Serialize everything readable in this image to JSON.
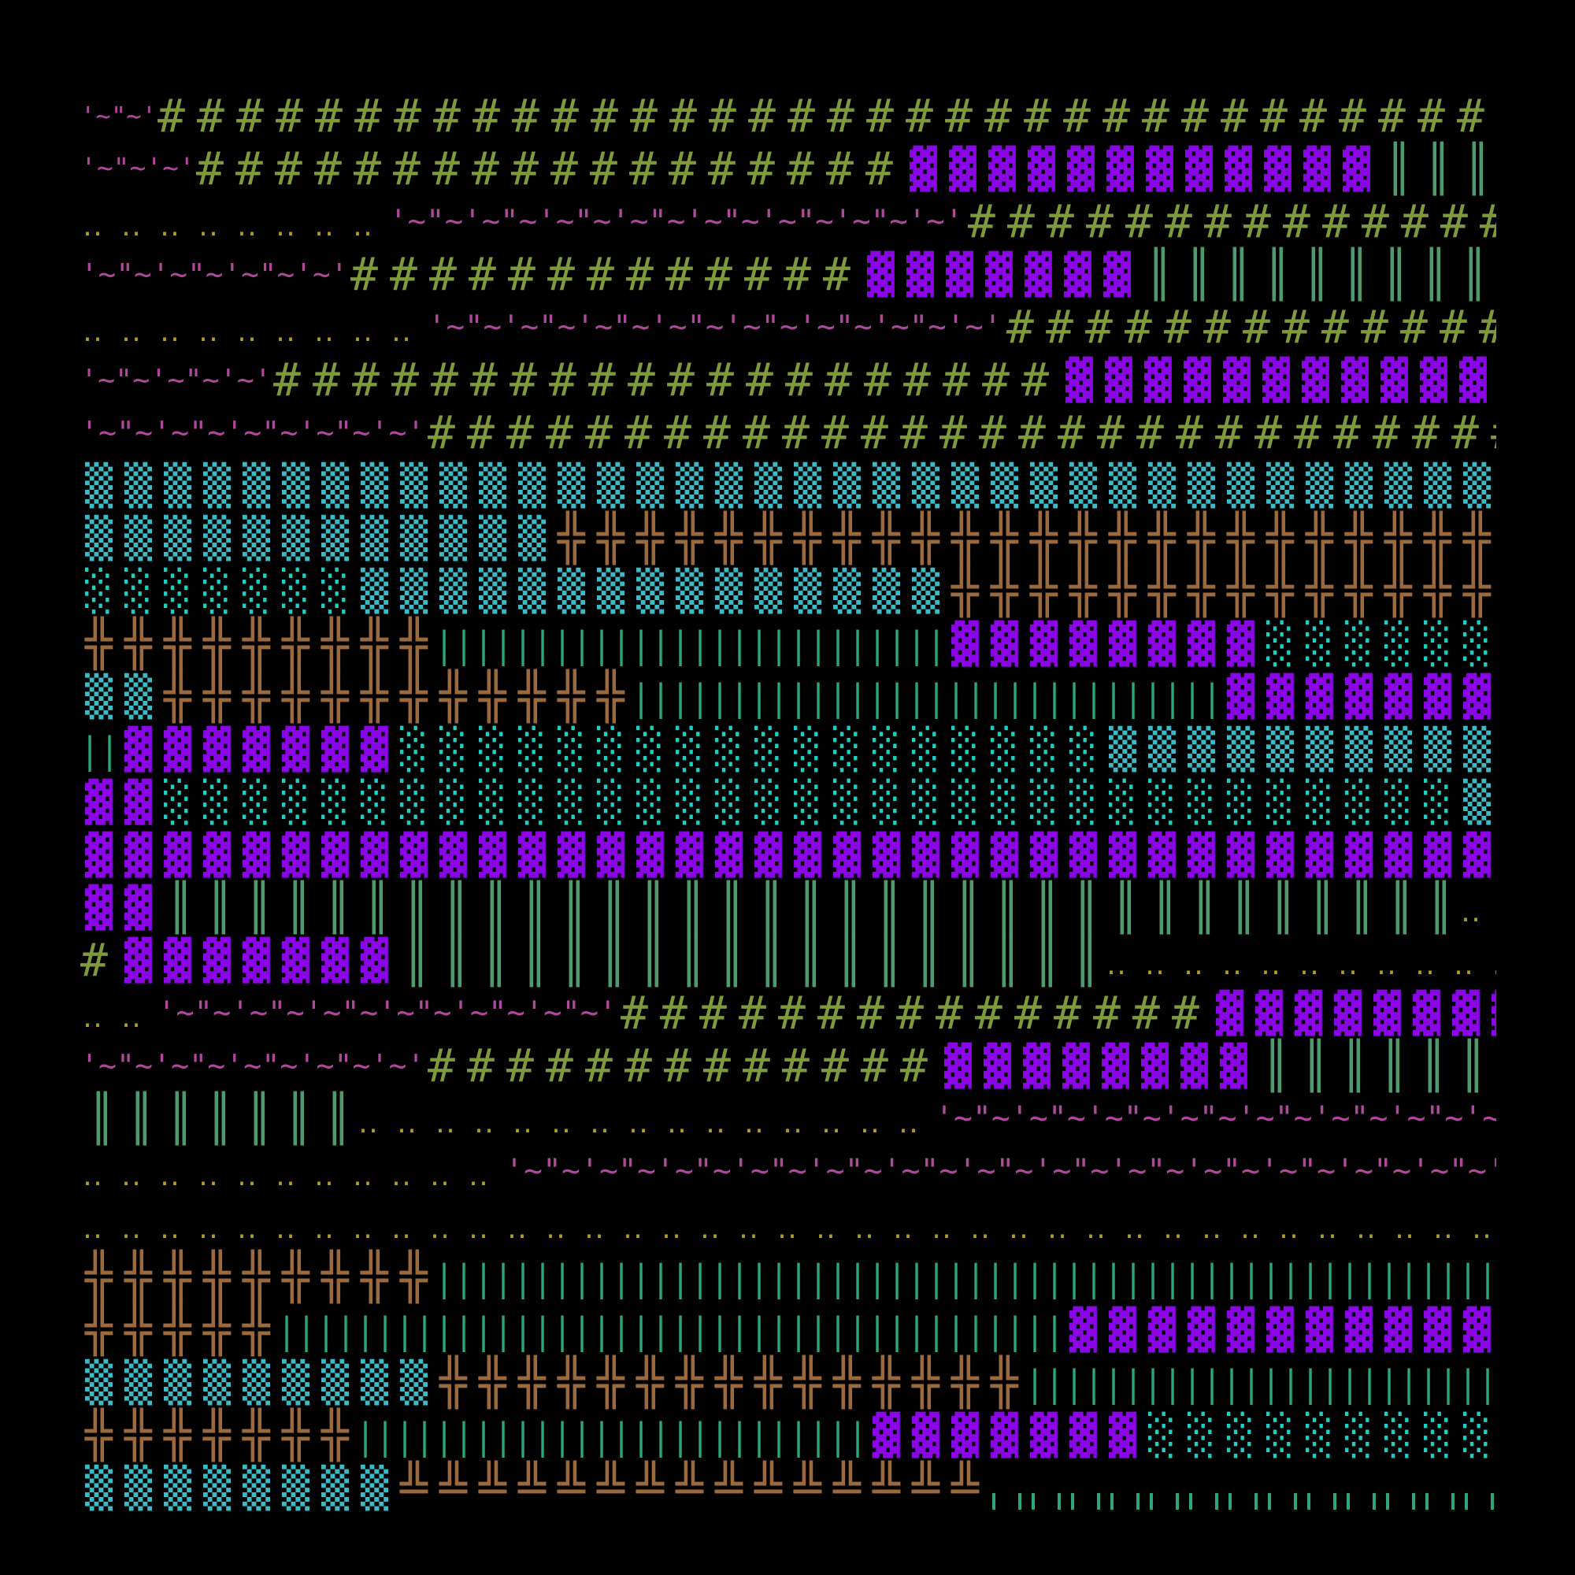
{
  "legend": {
    "H": {
      "char": "#",
      "color": "#7f9a3a"
    },
    "T": {
      "chars": [
        "'~",
        "\"~"
      ],
      "tail": "'",
      "color": "#b0489e"
    },
    "P": {
      "char": "▓",
      "color": "#8b06e6"
    },
    "C1": {
      "char": "▒",
      "color": "#3fbac4"
    },
    "C2": {
      "char": "░",
      "color": "#1dcfc4"
    },
    "X": {
      "char": "╬",
      "color": "#9a6a3e"
    },
    "W": {
      "char": "╩",
      "color": "#9a6a3e"
    },
    "V": {
      "char": "║",
      "color": "#4e9a6e"
    },
    "B": {
      "char": "|",
      "color": "#2aa878"
    },
    "S": {
      "char": "╷",
      "color": "#2aa878"
    },
    "D": {
      "char": "..",
      "color": "#b0a020"
    }
  },
  "rows": [
    [
      [
        "T",
        2
      ],
      [
        "H",
        36
      ]
    ],
    [
      [
        "T",
        3
      ],
      [
        "H",
        18
      ],
      [
        "P",
        12
      ],
      [
        "V",
        3
      ]
    ],
    [
      [
        "D",
        8
      ],
      [
        "T",
        15
      ],
      [
        "H",
        36
      ]
    ],
    [
      [
        "T",
        7
      ],
      [
        "H",
        13
      ],
      [
        "P",
        7
      ],
      [
        "V",
        9
      ]
    ],
    [
      [
        "D",
        9
      ],
      [
        "T",
        15
      ],
      [
        "H",
        36
      ]
    ],
    [
      [
        "T",
        5
      ],
      [
        "H",
        20
      ],
      [
        "P",
        36
      ]
    ],
    [
      [
        "T",
        9
      ],
      [
        "H",
        36
      ]
    ],
    [
      [
        "C1",
        37
      ]
    ],
    [
      [
        "C1",
        12
      ],
      [
        "X",
        36
      ]
    ],
    [
      [
        "C2",
        7
      ],
      [
        "C1",
        15
      ],
      [
        "X",
        36
      ]
    ],
    [
      [
        "X",
        9
      ],
      [
        "B",
        13
      ],
      [
        "P",
        8
      ],
      [
        "C2",
        36
      ]
    ],
    [
      [
        "C1",
        2
      ],
      [
        "X",
        12
      ],
      [
        "B",
        15
      ],
      [
        "P",
        36
      ]
    ],
    [
      [
        "B",
        1
      ],
      [
        "P",
        7
      ],
      [
        "C2",
        18
      ],
      [
        "C1",
        36
      ]
    ],
    [
      [
        "P",
        2
      ],
      [
        "C2",
        33
      ],
      [
        "C1",
        36
      ]
    ],
    [
      [
        "P",
        37
      ]
    ],
    [
      [
        "P",
        2
      ],
      [
        "V",
        33
      ],
      [
        "D",
        36
      ]
    ],
    [
      [
        "H",
        1
      ],
      [
        "P",
        7
      ],
      [
        "V",
        18
      ],
      [
        "D",
        36
      ]
    ],
    [
      [
        "D",
        2
      ],
      [
        "T",
        12
      ],
      [
        "H",
        15
      ],
      [
        "P",
        36
      ]
    ],
    [
      [
        "T",
        9
      ],
      [
        "H",
        13
      ],
      [
        "P",
        8
      ],
      [
        "V",
        6
      ]
    ],
    [
      [
        "V",
        7
      ],
      [
        "D",
        15
      ],
      [
        "T",
        36
      ]
    ],
    [
      [
        "D",
        11
      ],
      [
        "T",
        36
      ]
    ],
    [
      [
        "D",
        37
      ]
    ],
    [
      [
        "X",
        9
      ],
      [
        "B",
        36
      ]
    ],
    [
      [
        "X",
        5
      ],
      [
        "B",
        20
      ],
      [
        "P",
        36
      ]
    ],
    [
      [
        "C1",
        9
      ],
      [
        "X",
        15
      ],
      [
        "B",
        36
      ]
    ],
    [
      [
        "X",
        7
      ],
      [
        "B",
        13
      ],
      [
        "P",
        7
      ],
      [
        "C2",
        36
      ]
    ],
    [
      [
        "C1",
        8
      ],
      [
        "W",
        15
      ],
      [
        "S",
        36
      ]
    ]
  ]
}
